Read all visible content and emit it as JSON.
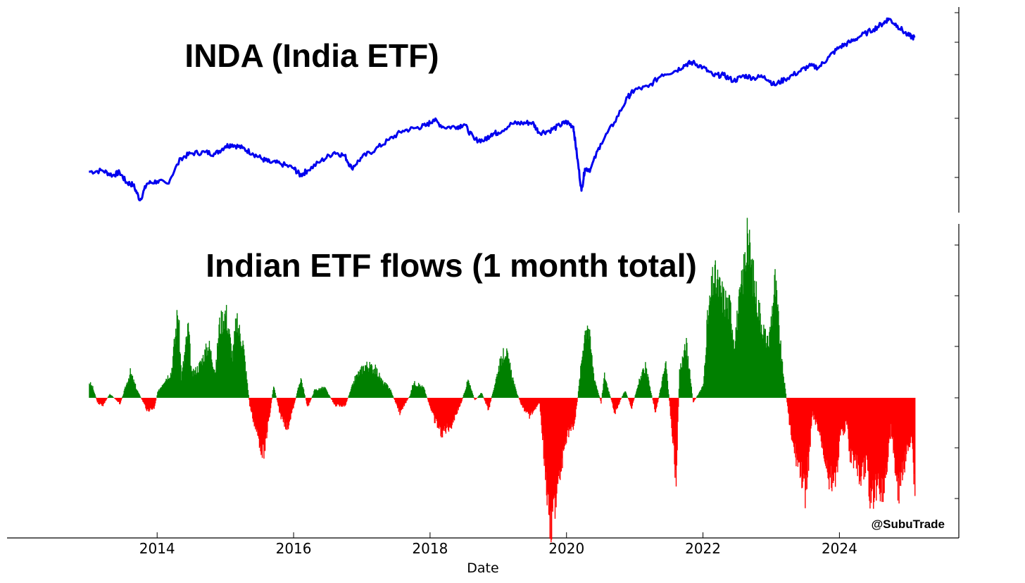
{
  "chart_data": [
    {
      "type": "line",
      "title": "INDA (India ETF)",
      "series": [
        {
          "name": "INDA",
          "color": "#0000ee",
          "x": [
            2013.0,
            2013.2,
            2013.35,
            2013.45,
            2013.55,
            2013.65,
            2013.75,
            2013.85,
            2014.0,
            2014.15,
            2014.35,
            2014.5,
            2014.7,
            2014.85,
            2015.0,
            2015.1,
            2015.25,
            2015.4,
            2015.55,
            2015.65,
            2015.8,
            2016.0,
            2016.1,
            2016.2,
            2016.4,
            2016.6,
            2016.75,
            2016.85,
            2017.0,
            2017.2,
            2017.4,
            2017.6,
            2017.8,
            2017.95,
            2018.05,
            2018.2,
            2018.4,
            2018.5,
            2018.65,
            2018.8,
            2018.9,
            2019.0,
            2019.2,
            2019.35,
            2019.5,
            2019.6,
            2019.75,
            2019.9,
            2020.0,
            2020.1,
            2020.15,
            2020.22,
            2020.27,
            2020.35,
            2020.5,
            2020.7,
            2020.9,
            2021.0,
            2021.2,
            2021.4,
            2021.6,
            2021.75,
            2021.85,
            2022.0,
            2022.15,
            2022.3,
            2022.45,
            2022.6,
            2022.75,
            2022.9,
            2023.05,
            2023.2,
            2023.4,
            2023.55,
            2023.7,
            2023.85,
            2024.0,
            2024.15,
            2024.3,
            2024.5,
            2024.65,
            2024.72,
            2024.85,
            2025.0,
            2025.1
          ],
          "values": [
            25.2,
            25.4,
            24.6,
            25.1,
            23.4,
            23.0,
            20.4,
            23.2,
            23.6,
            23.2,
            27.5,
            28.3,
            28.5,
            28.2,
            29.5,
            29.8,
            29.2,
            28.3,
            27.3,
            26.8,
            26.6,
            25.8,
            24.6,
            25.4,
            27.0,
            28.5,
            27.9,
            25.8,
            27.6,
            29.0,
            30.6,
            32.1,
            32.6,
            33.0,
            34.0,
            32.7,
            32.8,
            33.2,
            30.6,
            30.5,
            31.6,
            31.8,
            33.3,
            33.4,
            33.5,
            31.8,
            32.1,
            33.0,
            33.6,
            32.8,
            28.3,
            22.0,
            25.7,
            25.6,
            29.9,
            33.5,
            37.8,
            39.0,
            39.5,
            41.6,
            42.2,
            43.3,
            43.6,
            42.8,
            41.4,
            41.5,
            40.5,
            41.4,
            41.0,
            41.3,
            39.8,
            40.8,
            42.0,
            43.0,
            42.8,
            44.6,
            46.2,
            47.0,
            48.0,
            49.2,
            50.3,
            51.0,
            49.8,
            48.2,
            47.8
          ]
        }
      ],
      "ylim": [
        19.5,
        52
      ]
    },
    {
      "type": "bar",
      "title": "Indian ETF flows (1 month total)",
      "xlabel": "Date",
      "x_ticks": [
        "2014",
        "2016",
        "2018",
        "2020",
        "2022",
        "2024"
      ],
      "xlim": [
        2011.8,
        2025.75
      ],
      "positive_color": "#008000",
      "negative_color": "#ff0000",
      "ylim": [
        -2.5,
        3.0
      ],
      "series": [
        {
          "name": "Flows",
          "x": [
            2013.0,
            2013.05,
            2013.12,
            2013.2,
            2013.3,
            2013.45,
            2013.6,
            2013.7,
            2013.85,
            2013.95,
            2014.0,
            2014.1,
            2014.2,
            2014.3,
            2014.35,
            2014.45,
            2014.5,
            2014.6,
            2014.75,
            2014.85,
            2014.9,
            2015.0,
            2015.1,
            2015.15,
            2015.25,
            2015.35,
            2015.45,
            2015.55,
            2015.65,
            2015.7,
            2015.8,
            2015.9,
            2016.0,
            2016.1,
            2016.2,
            2016.3,
            2016.45,
            2016.6,
            2016.75,
            2016.9,
            2017.05,
            2017.2,
            2017.3,
            2017.4,
            2017.55,
            2017.7,
            2017.75,
            2017.9,
            2018.05,
            2018.15,
            2018.3,
            2018.45,
            2018.55,
            2018.65,
            2018.75,
            2018.85,
            2019.0,
            2019.1,
            2019.25,
            2019.35,
            2019.45,
            2019.6,
            2019.75,
            2019.85,
            2020.0,
            2020.1,
            2020.15,
            2020.25,
            2020.3,
            2020.4,
            2020.5,
            2020.55,
            2020.7,
            2020.85,
            2020.95,
            2021.05,
            2021.15,
            2021.3,
            2021.45,
            2021.6,
            2021.65,
            2021.75,
            2021.85,
            2022.0,
            2022.05,
            2022.15,
            2022.3,
            2022.4,
            2022.45,
            2022.55,
            2022.65,
            2022.75,
            2022.85,
            2022.95,
            2023.05,
            2023.15,
            2023.3,
            2023.45,
            2023.5,
            2023.6,
            2023.7,
            2023.85,
            2023.95,
            2024.0,
            2024.1,
            2024.15,
            2024.2,
            2024.3,
            2024.4,
            2024.45,
            2024.55,
            2024.65,
            2024.75,
            2024.85,
            2024.9,
            2025.0,
            2025.05,
            2025.1
          ],
          "values": [
            0.3,
            0.2,
            -0.1,
            -0.15,
            0.08,
            -0.12,
            0.5,
            0.15,
            -0.25,
            -0.2,
            0.1,
            0.35,
            0.5,
            1.75,
            0.4,
            1.4,
            0.45,
            0.6,
            1.05,
            0.5,
            1.4,
            1.7,
            0.8,
            1.5,
            1.1,
            -0.15,
            -0.7,
            -1.1,
            -0.3,
            0.25,
            -0.35,
            -0.6,
            -0.15,
            0.4,
            -0.2,
            0.15,
            0.2,
            -0.15,
            -0.15,
            0.4,
            0.65,
            0.55,
            0.3,
            0.2,
            -0.3,
            0.05,
            0.3,
            0.2,
            -0.4,
            -0.7,
            -0.55,
            -0.1,
            0.35,
            -0.05,
            0.1,
            -0.25,
            0.6,
            0.95,
            0.15,
            -0.2,
            -0.35,
            -0.1,
            -2.5,
            -2.0,
            -0.7,
            -0.6,
            -0.1,
            1.2,
            1.55,
            0.4,
            -0.1,
            0.45,
            -0.3,
            0.15,
            -0.2,
            0.3,
            0.6,
            -0.3,
            0.7,
            -1.6,
            0.55,
            1.05,
            -0.1,
            0.25,
            1.4,
            2.4,
            1.95,
            1.75,
            1.1,
            2.1,
            3.1,
            2.2,
            1.5,
            1.0,
            2.3,
            0.7,
            -0.9,
            -1.6,
            -1.9,
            -0.3,
            -0.7,
            -1.6,
            -1.5,
            -0.8,
            -0.5,
            -1.1,
            -1.2,
            -1.5,
            -1.3,
            -2.0,
            -1.7,
            -1.8,
            -0.6,
            -1.9,
            -1.5,
            -1.0,
            -0.7,
            -1.9
          ]
        }
      ]
    }
  ],
  "watermark": "@SubuTrade"
}
